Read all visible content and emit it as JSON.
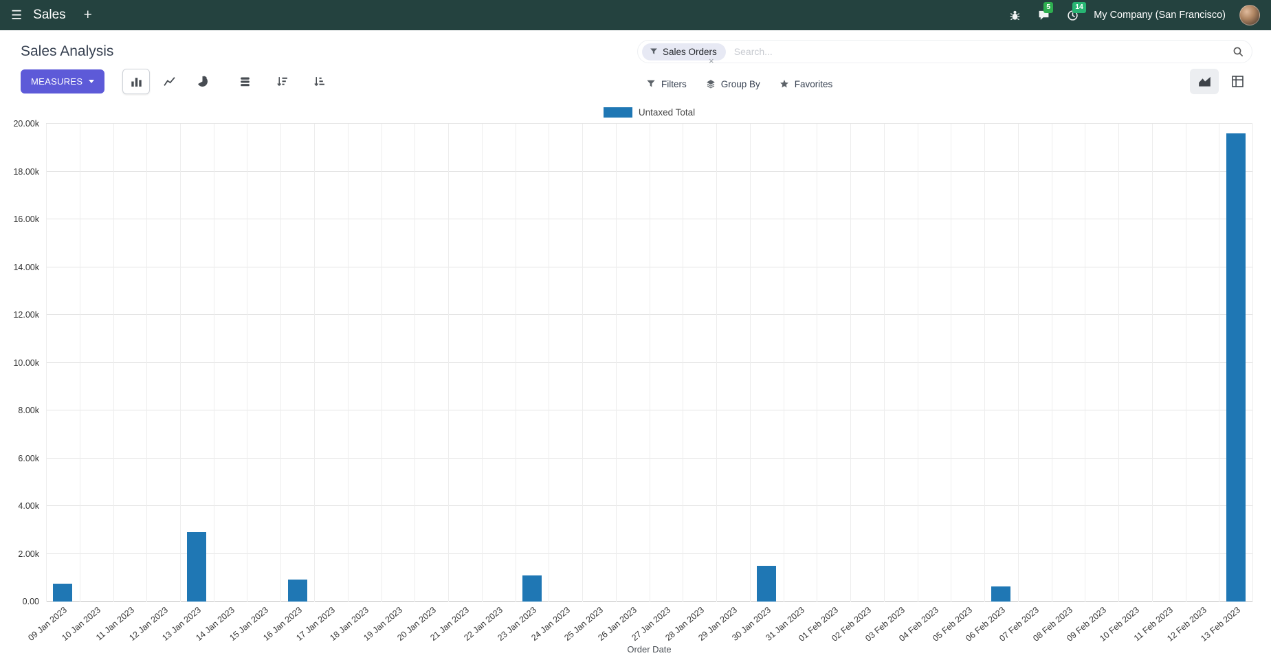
{
  "navbar": {
    "app_menu_label": "Sales",
    "new_tab_label": "+",
    "messages_badge": "5",
    "activities_badge": "14",
    "company_name": "My Company (San Francisco)"
  },
  "control_panel": {
    "breadcrumb_title": "Sales Analysis",
    "measures_button": "MEASURES",
    "search": {
      "facet_label": "Sales Orders",
      "facet_remove": "×",
      "placeholder": "Search..."
    },
    "filters_button": "Filters",
    "group_by_button": "Group By",
    "favorites_button": "Favorites"
  },
  "theme": {
    "navbar_bg": "#24423f",
    "primary_button": "#5d5ad8",
    "badge_green": "#2eae50",
    "bar_blue": "#1f77b4"
  },
  "chart_data": {
    "type": "bar",
    "title": "",
    "xlabel": "Order Date",
    "ylabel": "",
    "ylim": [
      0,
      20000
    ],
    "grid": true,
    "legend_position": "top-center",
    "y_ticks": [
      "0.00",
      "2.00k",
      "4.00k",
      "6.00k",
      "8.00k",
      "10.00k",
      "12.00k",
      "14.00k",
      "16.00k",
      "18.00k",
      "20.00k"
    ],
    "categories": [
      "09 Jan 2023",
      "10 Jan 2023",
      "11 Jan 2023",
      "12 Jan 2023",
      "13 Jan 2023",
      "14 Jan 2023",
      "15 Jan 2023",
      "16 Jan 2023",
      "17 Jan 2023",
      "18 Jan 2023",
      "19 Jan 2023",
      "20 Jan 2023",
      "21 Jan 2023",
      "22 Jan 2023",
      "23 Jan 2023",
      "24 Jan 2023",
      "25 Jan 2023",
      "26 Jan 2023",
      "27 Jan 2023",
      "28 Jan 2023",
      "29 Jan 2023",
      "30 Jan 2023",
      "31 Jan 2023",
      "01 Feb 2023",
      "02 Feb 2023",
      "03 Feb 2023",
      "04 Feb 2023",
      "05 Feb 2023",
      "06 Feb 2023",
      "07 Feb 2023",
      "08 Feb 2023",
      "09 Feb 2023",
      "10 Feb 2023",
      "11 Feb 2023",
      "12 Feb 2023",
      "13 Feb 2023"
    ],
    "series": [
      {
        "name": "Untaxed Total",
        "color": "#1f77b4",
        "values": [
          750,
          0,
          0,
          0,
          2900,
          0,
          0,
          930,
          0,
          0,
          0,
          0,
          0,
          0,
          1080,
          0,
          0,
          0,
          0,
          0,
          0,
          1490,
          0,
          0,
          0,
          0,
          0,
          0,
          620,
          0,
          0,
          0,
          0,
          0,
          0,
          19600
        ]
      }
    ]
  }
}
